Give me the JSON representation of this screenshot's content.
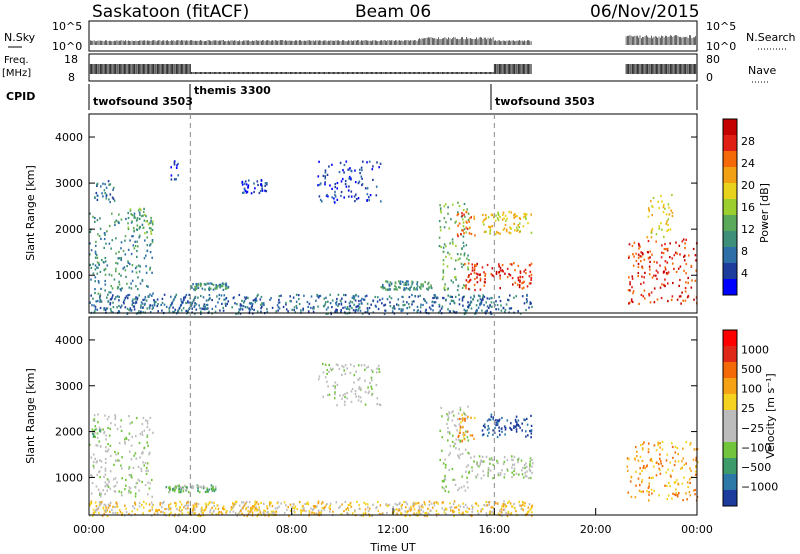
{
  "header": {
    "station": "Saskatoon (fitACF)",
    "beam": "Beam 06",
    "date": "06/Nov/2015"
  },
  "strips": {
    "nsky": {
      "label": "N.Sky",
      "ticks": [
        "10^5",
        "10^0"
      ]
    },
    "nsearch": {
      "label": "N.Search",
      "ticks": [
        "10^5",
        "10^0"
      ]
    },
    "freq": {
      "label_top": "Freq.",
      "label_bottom": "[MHz]",
      "ticks": [
        "18",
        "8"
      ]
    },
    "nave": {
      "label": "Nave",
      "ticks": [
        "80",
        "0"
      ]
    },
    "cpid": {
      "label": "CPID",
      "segments": [
        {
          "name": "twofsound 3503",
          "start_hour": 0.0,
          "end_hour": 4.0
        },
        {
          "name": "themis 3300",
          "start_hour": 4.0,
          "end_hour": 16.0
        },
        {
          "name": "twofsound 3503",
          "start_hour": 16.0,
          "end_hour": 24.0
        }
      ]
    }
  },
  "panels": {
    "power": {
      "ylabel": "Slant Range [km]",
      "colorbar_label": "Power [dB]",
      "colorbar_ticks": [
        "28",
        "24",
        "20",
        "16",
        "12",
        "8",
        "4"
      ],
      "colors": [
        "#0000ff",
        "#1e3c9c",
        "#2f6fa8",
        "#3d8f7a",
        "#5aa85a",
        "#9ccf2e",
        "#e8d21c",
        "#f2a112",
        "#f56a08",
        "#e11e14",
        "#c40000"
      ]
    },
    "velocity": {
      "ylabel": "Slant Range [km]",
      "colorbar_label": "Velocity [m s⁻¹]",
      "colorbar_ticks": [
        "1000",
        "500",
        "100",
        "25",
        "−25",
        "−100",
        "−500",
        "−1000"
      ],
      "colors": [
        "#1c3b9c",
        "#2c79a8",
        "#3d9a6a",
        "#71c43c",
        "#bcbcbc",
        "#bcbcbc",
        "#f4d21f",
        "#f5a314",
        "#f36a07",
        "#e02818",
        "#ff0000"
      ]
    }
  },
  "chart_data": {
    "type": "heatmap",
    "title": "Saskatoon (fitACF)",
    "xlabel": "Time UT",
    "ylabel": "Slant Range [km]",
    "x_ticks": [
      "00:00",
      "04:00",
      "08:00",
      "12:00",
      "16:00",
      "20:00",
      "00:00"
    ],
    "y_ticks": [
      "1000",
      "2000",
      "3000",
      "4000"
    ],
    "x_range_hours": [
      0,
      24
    ],
    "y_range_km": [
      180,
      4500
    ],
    "data_gap_hours": [
      17.5,
      21.2
    ],
    "power_regions": [
      {
        "t0": 0.0,
        "t1": 2.5,
        "r0": 600,
        "r1": 2400,
        "level": 3
      },
      {
        "t0": 0.2,
        "t1": 1.0,
        "r0": 2600,
        "r1": 3100,
        "level": 2
      },
      {
        "t0": 1.5,
        "t1": 2.5,
        "r0": 1900,
        "r1": 2500,
        "level": 4
      },
      {
        "t0": 3.2,
        "t1": 3.5,
        "r0": 3100,
        "r1": 3500,
        "level": 1
      },
      {
        "t0": 4.0,
        "t1": 5.5,
        "r0": 700,
        "r1": 850,
        "level": 3
      },
      {
        "t0": 6.0,
        "t1": 7.0,
        "r0": 2800,
        "r1": 3100,
        "level": 1
      },
      {
        "t0": 9.0,
        "t1": 11.5,
        "r0": 2600,
        "r1": 3500,
        "level": 1
      },
      {
        "t0": 11.5,
        "t1": 13.5,
        "r0": 700,
        "r1": 900,
        "level": 3
      },
      {
        "t0": 13.8,
        "t1": 15.0,
        "r0": 700,
        "r1": 2600,
        "level": 4
      },
      {
        "t0": 14.5,
        "t1": 15.2,
        "r0": 1800,
        "r1": 2400,
        "level": 8
      },
      {
        "t0": 14.8,
        "t1": 17.5,
        "r0": 700,
        "r1": 1300,
        "level": 9
      },
      {
        "t0": 15.5,
        "t1": 17.5,
        "r0": 1900,
        "r1": 2400,
        "level": 6
      },
      {
        "t0": 21.2,
        "t1": 24.0,
        "r0": 400,
        "r1": 1800,
        "level": 9
      },
      {
        "t0": 22.0,
        "t1": 23.0,
        "r0": 1800,
        "r1": 2800,
        "level": 6
      },
      {
        "t0": 0.0,
        "t1": 17.5,
        "r0": 180,
        "r1": 600,
        "level": 2
      }
    ],
    "velocity_regions": [
      {
        "t0": 0.0,
        "t1": 2.5,
        "r0": 600,
        "r1": 2400,
        "level": 4
      },
      {
        "t0": 0.1,
        "t1": 0.6,
        "r0": 1900,
        "r1": 2100,
        "level": 3
      },
      {
        "t0": 3.0,
        "t1": 5.0,
        "r0": 700,
        "r1": 850,
        "level": 3
      },
      {
        "t0": 9.0,
        "t1": 11.5,
        "r0": 2600,
        "r1": 3500,
        "level": 4
      },
      {
        "t0": 13.8,
        "t1": 15.0,
        "r0": 700,
        "r1": 2600,
        "level": 4
      },
      {
        "t0": 14.5,
        "t1": 15.2,
        "r0": 1800,
        "r1": 2400,
        "level": 7
      },
      {
        "t0": 15.0,
        "t1": 17.5,
        "r0": 1000,
        "r1": 1500,
        "level": 4
      },
      {
        "t0": 15.5,
        "t1": 17.5,
        "r0": 1900,
        "r1": 2400,
        "level": 0
      },
      {
        "t0": 21.2,
        "t1": 24.0,
        "r0": 500,
        "r1": 1800,
        "level": 7
      },
      {
        "t0": 0.0,
        "t1": 17.5,
        "r0": 180,
        "r1": 500,
        "level": 6
      }
    ]
  }
}
